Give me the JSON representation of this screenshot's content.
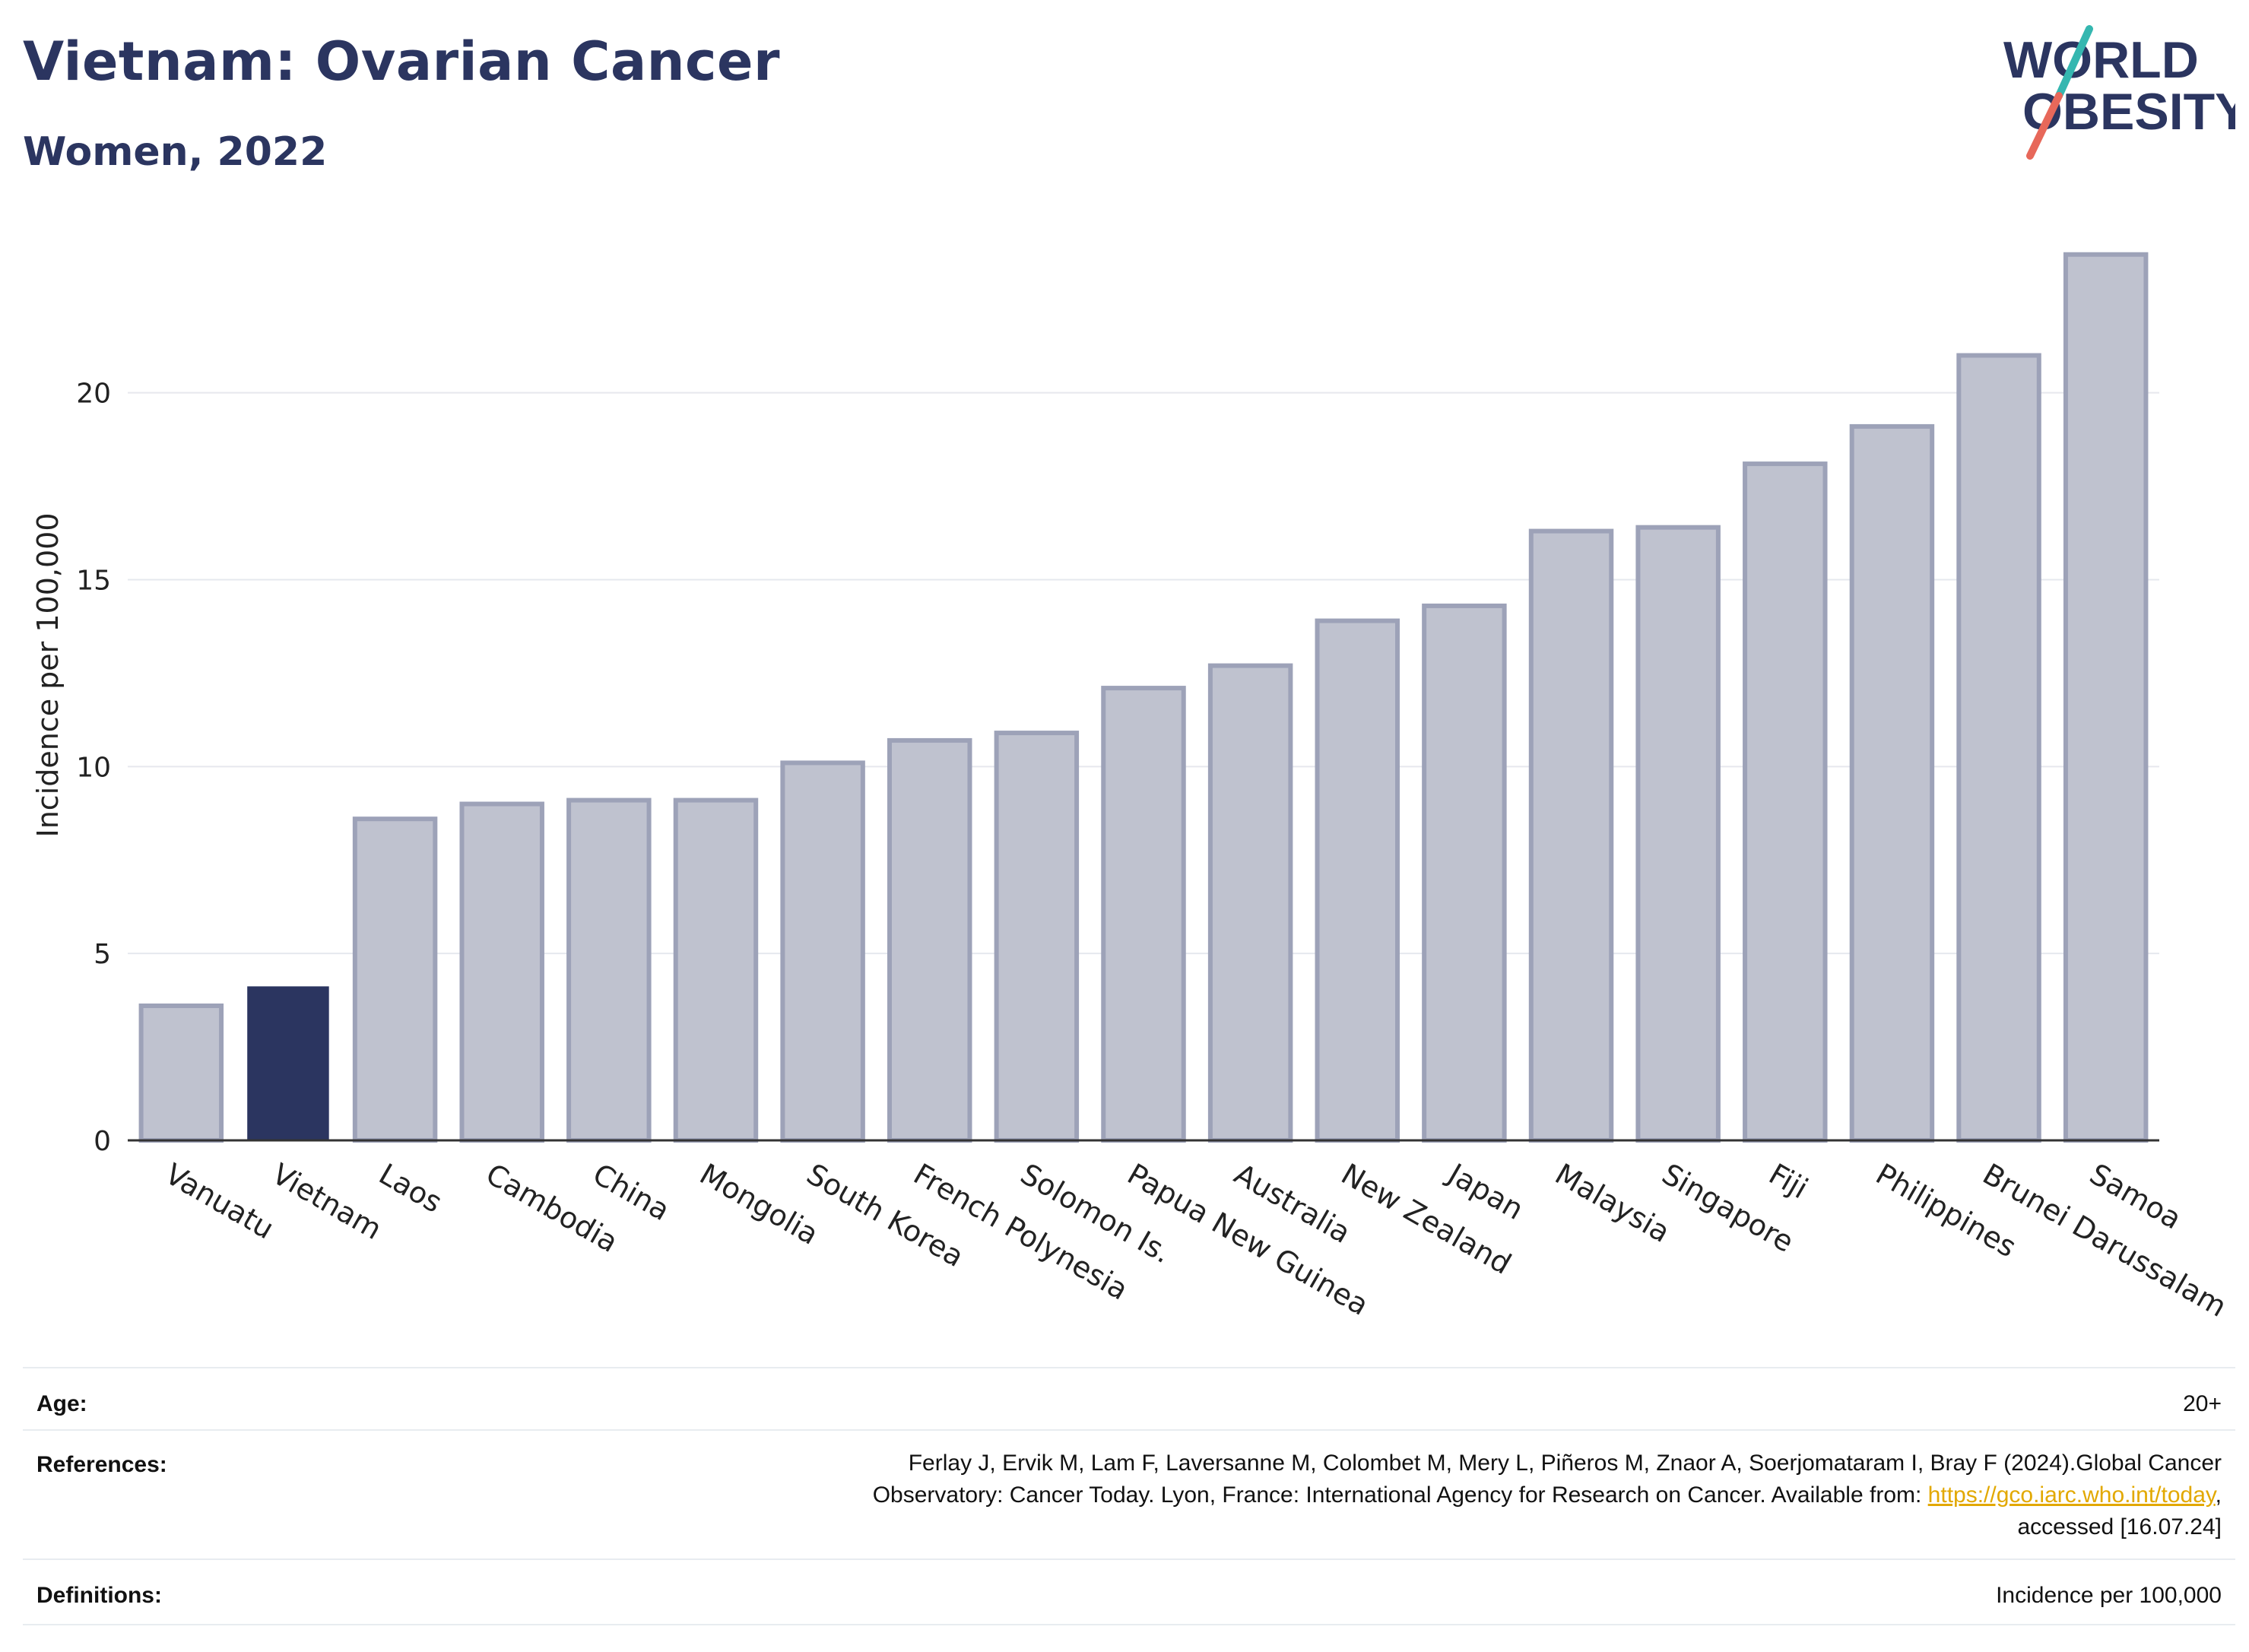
{
  "header": {
    "title": "Vietnam: Ovarian Cancer",
    "subtitle": "Women, 2022",
    "logo_line1": "WORLD",
    "logo_line2": "OBESITY"
  },
  "chart_data": {
    "type": "bar",
    "categories": [
      "Vanuatu",
      "Vietnam",
      "Laos",
      "Cambodia",
      "China",
      "Mongolia",
      "South Korea",
      "French Polynesia",
      "Solomon Is.",
      "Papua New Guinea",
      "Australia",
      "New Zealand",
      "Japan",
      "Malaysia",
      "Singapore",
      "Fiji",
      "Philippines",
      "Brunei Darussalam",
      "Samoa"
    ],
    "values": [
      3.6,
      4.1,
      8.6,
      9.0,
      9.1,
      9.1,
      10.1,
      10.7,
      10.9,
      12.1,
      12.7,
      13.9,
      14.3,
      16.3,
      16.4,
      18.1,
      19.1,
      21.0,
      23.7
    ],
    "highlight": "Vietnam",
    "ylabel": "Incidence per 100,000",
    "xlabel": "",
    "ylim": [
      0,
      24
    ],
    "yticks": [
      0,
      5,
      10,
      15,
      20
    ],
    "grid": true,
    "colors": {
      "bar_fill": "#bfc2cf",
      "bar_stroke": "#9da2b8",
      "highlight_fill": "#2b3560",
      "grid": "#e6e8ee",
      "axis": "#333333"
    }
  },
  "meta": {
    "age_label": "Age:",
    "age_value": "20+",
    "references_label": "References:",
    "references_line1": "Ferlay J, Ervik M, Lam F, Laversanne M, Colombet M, Mery L, Piñeros M, Znaor A, Soerjomataram I, Bray F (2024).Global Cancer",
    "references_line2_pre": "Observatory: Cancer Today. Lyon, France: International Agency for Research on Cancer. Available from: ",
    "references_link": "https://gco.iarc.who.int/today",
    "references_line2_post": ",",
    "references_line3": "accessed [16.07.24]",
    "definitions_label": "Definitions:",
    "definitions_value": "Incidence per 100,000"
  },
  "logo_colors": {
    "teal": "#35b7b0",
    "coral": "#e7685a",
    "navy": "#2b3560"
  }
}
